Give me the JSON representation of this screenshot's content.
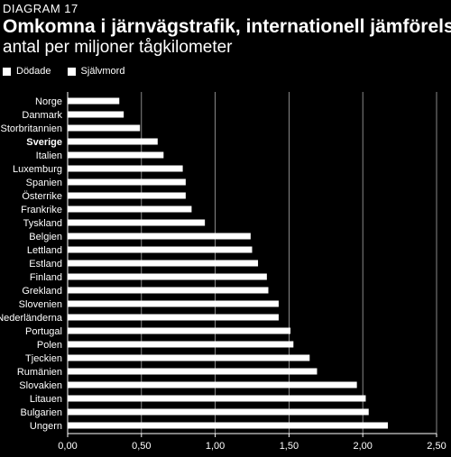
{
  "header": {
    "diagram_label": "DIAGRAM 17",
    "title": "Omkomna i järnvägstrafik, internationell jämförelse,",
    "subtitle": "antal per miljoner tågkilometer"
  },
  "legend": [
    {
      "label": "Dödade",
      "color": "#ffffff"
    },
    {
      "label": "Självmord",
      "color": "#ffffff"
    }
  ],
  "chart_data": {
    "type": "bar",
    "orientation": "horizontal",
    "highlighted_category": "Sverige",
    "categories": [
      "Norge",
      "Danmark",
      "Storbritannien",
      "Sverige",
      "Italien",
      "Luxemburg",
      "Spanien",
      "Österrike",
      "Frankrike",
      "Tyskland",
      "Belgien",
      "Lettland",
      "Estland",
      "Finland",
      "Grekland",
      "Slovenien",
      "Nederländerna",
      "Portugal",
      "Polen",
      "Tjeckien",
      "Rumänien",
      "Slovakien",
      "Litauen",
      "Bulgarien",
      "Ungern"
    ],
    "series": [
      {
        "values": [
          0.35,
          0.38,
          0.49,
          0.61,
          0.65,
          0.78,
          0.8,
          0.8,
          0.84,
          0.93,
          1.24,
          1.25,
          1.29,
          1.35,
          1.36,
          1.43,
          1.43,
          1.51,
          1.53,
          1.64,
          1.69,
          1.96,
          2.02,
          2.04,
          2.17
        ]
      }
    ],
    "xlim": [
      0,
      2.5
    ],
    "xticks": [
      "0,00",
      "0,50",
      "1,00",
      "1,50",
      "2,00",
      "2,50"
    ],
    "grid": true,
    "legend_position": "top-left"
  }
}
